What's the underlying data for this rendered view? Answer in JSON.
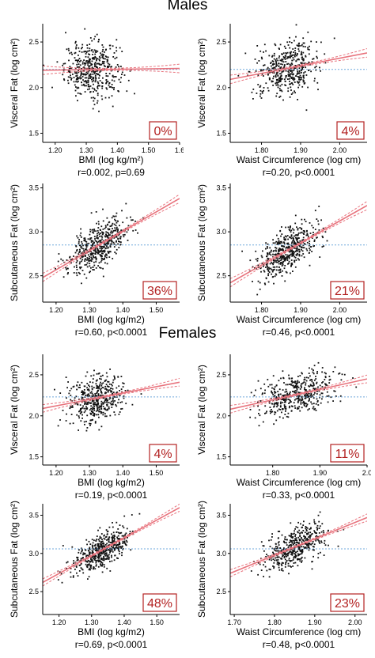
{
  "sections": {
    "males": "Males",
    "females": "Females"
  },
  "colors": {
    "points": "#111111",
    "fit": "#e8737d",
    "ci": "#e8737d",
    "mean": "#6fa8dc",
    "percent": "#b32222"
  },
  "chart_data": [
    {
      "id": "m-bmi-visceral",
      "type": "scatter",
      "xlabel": "BMI (log kg/m²)",
      "ylabel": "Visceral Fat (log cm²)",
      "xlim": [
        1.16,
        1.6
      ],
      "ylim": [
        1.4,
        2.7
      ],
      "xticks": [
        "1.20",
        "1.30",
        "1.40",
        "1.50",
        "1.6"
      ],
      "xtick_values": [
        1.2,
        1.3,
        1.4,
        1.5,
        1.6
      ],
      "yticks": [
        "1.5",
        "2.0",
        "2.5"
      ],
      "ytick_values": [
        1.5,
        2.0,
        2.5
      ],
      "percent": "0%",
      "stat": "r=0.002, p=0.69",
      "mean_y": 2.2,
      "fit": {
        "x0": 1.16,
        "y0": 2.19,
        "x1": 1.6,
        "y1": 2.21
      },
      "points_summary": {
        "n": 450,
        "x_mean": 1.32,
        "x_sd": 0.045,
        "y_sd": 0.15,
        "slope": 0.05
      }
    },
    {
      "id": "m-waist-visceral",
      "type": "scatter",
      "xlabel": "Waist Circumference (log cm)",
      "ylabel": "Visceral Fat (log cm²)",
      "xlim": [
        1.72,
        2.07
      ],
      "ylim": [
        1.4,
        2.7
      ],
      "xticks": [
        "1.80",
        "1.90",
        "2.00"
      ],
      "xtick_values": [
        1.8,
        1.9,
        2.0
      ],
      "yticks": [
        "1.5",
        "2.0",
        "2.5"
      ],
      "ytick_values": [
        1.5,
        2.0,
        2.5
      ],
      "percent": "4%",
      "stat": "r=0.20, p<0.0001",
      "mean_y": 2.2,
      "fit": {
        "x0": 1.72,
        "y0": 2.09,
        "x1": 2.07,
        "y1": 2.38
      },
      "points_summary": {
        "n": 450,
        "x_mean": 1.865,
        "x_sd": 0.04,
        "y_sd": 0.14,
        "slope": 0.8
      }
    },
    {
      "id": "m-bmi-subq",
      "type": "scatter",
      "xlabel": "BMI (log kg/m2)",
      "ylabel": "Subcutaneous Fat (log cm²)",
      "xlim": [
        1.16,
        1.57
      ],
      "ylim": [
        2.2,
        3.55
      ],
      "xticks": [
        "1.20",
        "1.30",
        "1.40",
        "1.50"
      ],
      "xtick_values": [
        1.2,
        1.3,
        1.4,
        1.5
      ],
      "yticks": [
        "2.5",
        "3.0",
        "3.5"
      ],
      "ytick_values": [
        2.5,
        3.0,
        3.5
      ],
      "percent": "36%",
      "stat": "r=0.60, p<0.0001",
      "mean_y": 2.85,
      "fit": {
        "x0": 1.16,
        "y0": 2.48,
        "x1": 1.57,
        "y1": 3.38
      },
      "points_summary": {
        "n": 500,
        "x_mean": 1.33,
        "x_sd": 0.045,
        "y_sd": 0.12,
        "slope": 2.2
      }
    },
    {
      "id": "m-waist-subq",
      "type": "scatter",
      "xlabel": "Waist Circumference (log cm)",
      "ylabel": "Subcutaneous Fat (log cm²)",
      "xlim": [
        1.72,
        2.07
      ],
      "ylim": [
        2.2,
        3.55
      ],
      "xticks": [
        "1.80",
        "1.90",
        "2.00"
      ],
      "xtick_values": [
        1.8,
        1.9,
        2.0
      ],
      "yticks": [
        "2.5",
        "3.0",
        "3.5"
      ],
      "ytick_values": [
        2.5,
        3.0,
        3.5
      ],
      "percent": "21%",
      "stat": "r=0.46, p<0.0001",
      "mean_y": 2.85,
      "fit": {
        "x0": 1.72,
        "y0": 2.42,
        "x1": 2.07,
        "y1": 3.3
      },
      "points_summary": {
        "n": 500,
        "x_mean": 1.865,
        "x_sd": 0.04,
        "y_sd": 0.13,
        "slope": 2.5
      }
    },
    {
      "id": "f-bmi-visceral",
      "type": "scatter",
      "xlabel": "BMI (log kg/m2)",
      "ylabel": "Visceral Fat (log cm²)",
      "xlim": [
        1.16,
        1.57
      ],
      "ylim": [
        1.4,
        2.75
      ],
      "xticks": [
        "1.20",
        "1.30",
        "1.40",
        "1.50"
      ],
      "xtick_values": [
        1.2,
        1.3,
        1.4,
        1.5
      ],
      "yticks": [
        "1.5",
        "2.0",
        "2.5"
      ],
      "ytick_values": [
        1.5,
        2.0,
        2.5
      ],
      "percent": "4%",
      "stat": "r=0.19, p<0.0001",
      "mean_y": 2.23,
      "fit": {
        "x0": 1.16,
        "y0": 2.09,
        "x1": 1.57,
        "y1": 2.41
      },
      "points_summary": {
        "n": 450,
        "x_mean": 1.32,
        "x_sd": 0.04,
        "y_sd": 0.14,
        "slope": 0.8
      }
    },
    {
      "id": "f-waist-visceral",
      "type": "scatter",
      "xlabel": "Waist Circumference (log cm)",
      "ylabel": "Visceral Fat (log cm²)",
      "xlim": [
        1.71,
        2.0
      ],
      "ylim": [
        1.4,
        2.75
      ],
      "xticks": [
        "1.80",
        "1.90",
        "2.0"
      ],
      "xtick_values": [
        1.8,
        1.9,
        2.0
      ],
      "yticks": [
        "1.5",
        "2.0",
        "2.5"
      ],
      "ytick_values": [
        1.5,
        2.0,
        2.5
      ],
      "percent": "11%",
      "stat": "r=0.33, p<0.0001",
      "mean_y": 2.23,
      "fit": {
        "x0": 1.71,
        "y0": 2.08,
        "x1": 2.0,
        "y1": 2.45
      },
      "points_summary": {
        "n": 450,
        "x_mean": 1.85,
        "x_sd": 0.04,
        "y_sd": 0.13,
        "slope": 1.3
      }
    },
    {
      "id": "f-bmi-subq",
      "type": "scatter",
      "xlabel": "BMI (log kg/m2)",
      "ylabel": "Subcutaneous Fat (log cm²)",
      "xlim": [
        1.15,
        1.57
      ],
      "ylim": [
        2.2,
        3.65
      ],
      "xticks": [
        "1.20",
        "1.30",
        "1.40",
        "1.50"
      ],
      "xtick_values": [
        1.2,
        1.3,
        1.4,
        1.5
      ],
      "yticks": [
        "2.5",
        "3.0",
        "3.5"
      ],
      "ytick_values": [
        2.5,
        3.0,
        3.5
      ],
      "percent": "48%",
      "stat": "r=0.69, p<0.0001",
      "mean_y": 3.06,
      "fit": {
        "x0": 1.15,
        "y0": 2.62,
        "x1": 1.57,
        "y1": 3.6
      },
      "points_summary": {
        "n": 500,
        "x_mean": 1.33,
        "x_sd": 0.045,
        "y_sd": 0.11,
        "slope": 2.35
      }
    },
    {
      "id": "f-waist-subq",
      "type": "scatter",
      "xlabel": "Waist Circumference (log cm)",
      "ylabel": "Subcutaneous Fat (log cm²)",
      "xlim": [
        1.69,
        2.03
      ],
      "ylim": [
        2.2,
        3.65
      ],
      "xticks": [
        "1.70",
        "1.80",
        "1.90",
        "2.00"
      ],
      "xtick_values": [
        1.7,
        1.8,
        1.9,
        2.0
      ],
      "yticks": [
        "2.5",
        "3.0",
        "3.5"
      ],
      "ytick_values": [
        2.5,
        3.0,
        3.5
      ],
      "percent": "23%",
      "stat": "r=0.48, p<0.0001",
      "mean_y": 3.06,
      "fit": {
        "x0": 1.69,
        "y0": 2.74,
        "x1": 2.03,
        "y1": 3.47
      },
      "points_summary": {
        "n": 450,
        "x_mean": 1.85,
        "x_sd": 0.04,
        "y_sd": 0.13,
        "slope": 2.15
      }
    }
  ]
}
